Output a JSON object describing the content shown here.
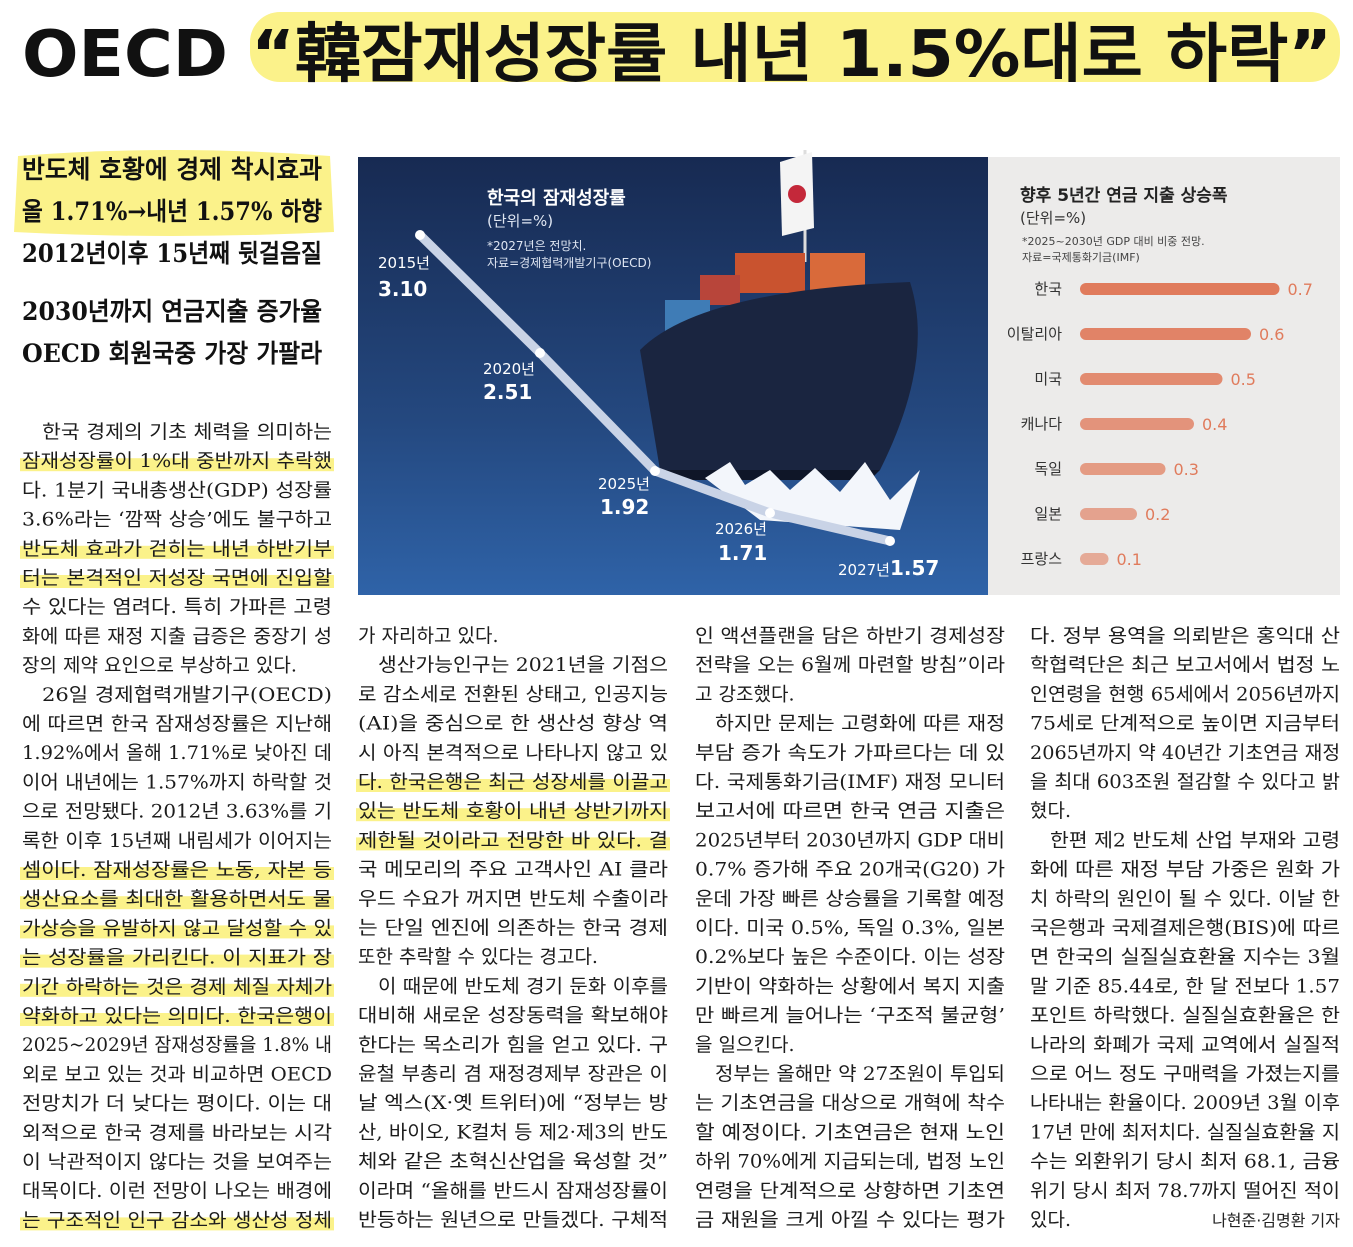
{
  "headline": "OECD “韓잠재성장률 내년 1.5%대로 하락”",
  "subheads": [
    "반도체 호황에 경제 착시효과",
    "올 1.71%→내년 1.57% 하향",
    "2012년이후 15년째 뒷걸음질",
    "2030년까지 연금지출 증가율",
    "OECD 회원국중 가장 가팔라"
  ],
  "chart_data": [
    {
      "type": "line",
      "title": "한국의 잠재성장률",
      "unit": "(단위=%)",
      "notes": [
        "*2027년은 전망치.",
        "자료=경제협력개발기구(OECD)"
      ],
      "categories": [
        "2015년",
        "2020년",
        "2025년",
        "2026년",
        "2027년"
      ],
      "values": [
        3.1,
        2.51,
        1.92,
        1.71,
        1.57
      ],
      "value_labels": [
        "3.10",
        "2.51",
        "1.92",
        "1.71",
        "1.57"
      ],
      "color": "#c9d3e6"
    },
    {
      "type": "bar",
      "title": "향후 5년간 연금 지출 상승폭",
      "unit": "(단위=%)",
      "notes": [
        "*2025~2030년 GDP 대비 비중 전망.",
        "자료=국제통화기금(IMF)"
      ],
      "categories": [
        "한국",
        "이탈리아",
        "미국",
        "캐나다",
        "독일",
        "일본",
        "프랑스"
      ],
      "values": [
        0.7,
        0.6,
        0.5,
        0.4,
        0.3,
        0.2,
        0.1
      ],
      "color": "#e07b5c"
    }
  ],
  "body": {
    "columns": [
      [
        "한국 경제의 기초 체력을 의미하는",
        "잠재성장률이 1%대 중반까지 추락했",
        "다. 1분기 국내총생산(GDP) 성장률",
        "3.6%라는 ‘깜짝 상승’에도 불구하고",
        "반도체 효과가 걷히는 내년 하반기부",
        "터는 본격적인 저성장 국면에 진입할",
        "수 있다는 염려다. 특히 가파른 고령",
        "화에 따른 재정 지출 급증은 중장기 성",
        "장의 제약 요인으로 부상하고 있다.",
        "26일 경제협력개발기구(OECD)",
        "에 따르면 한국 잠재성장률은 지난해",
        "1.92%에서 올해 1.71%로 낮아진 데",
        "이어 내년에는 1.57%까지 하락할 것",
        "으로 전망됐다. 2012년 3.63%를 기",
        "록한 이후 15년째 내림세가 이어지는",
        "셈이다. 잠재성장률은 노동, 자본 등",
        "생산요소를 최대한 활용하면서도 물",
        "가상승을 유발하지 않고 달성할 수 있",
        "는 성장률을 가리킨다. 이 지표가 장",
        "기간 하락하는 것은 경제 체질 자체가",
        "약화하고 있다는 의미다. 한국은행이",
        "2025~2029년 잠재성장률을 1.8% 내",
        "외로 보고 있는 것과 비교하면 OECD",
        "전망치가 더 낮다는 평이다. 이는 대",
        "외적으로 한국 경제를 바라보는 시각",
        "이 낙관적이지 않다는 것을 보여주는",
        "대목이다. 이런 전망이 나오는 배경에",
        "는 구조적인 인구 감소와 생산성 정체"
      ],
      [
        "가 자리하고 있다.",
        "생산가능인구는 2021년을 기점으",
        "로 감소세로 전환된 상태고, 인공지능",
        "(AI)을 중심으로 한 생산성 향상 역",
        "시 아직 본격적으로 나타나지 않고 있",
        "다. 한국은행은 최근 성장세를 이끌고",
        "있는 반도체 호황이 내년 상반기까지",
        "제한될 것이라고 전망한 바 있다. 결",
        "국 메모리의 주요 고객사인 AI 클라",
        "우드 수요가 꺼지면 반도체 수출이라",
        "는 단일 엔진에 의존하는 한국 경제",
        "또한 추락할 수 있다는 경고다.",
        "이 때문에 반도체 경기 둔화 이후를",
        "대비해 새로운 성장동력을 확보해야",
        "한다는 목소리가 힘을 얻고 있다. 구",
        "윤철 부총리 겸 재정경제부 장관은 이",
        "날 엑스(X·옛 트위터)에 “정부는 방",
        "산, 바이오, K컬처 등 제2·제3의 반도",
        "체와 같은 초혁신산업을 육성할 것”",
        "이라며 “올해를 반드시 잠재성장률이",
        "반등하는 원년으로 만들겠다. 구체적"
      ],
      [
        "인 액션플랜을 담은 하반기 경제성장",
        "전략을 오는 6월께 마련할 방침”이라",
        "고 강조했다.",
        "하지만 문제는 고령화에 따른 재정",
        "부담 증가 속도가 가파르다는 데 있",
        "다. 국제통화기금(IMF) 재정 모니터",
        "보고서에 따르면 한국 연금 지출은",
        "2025년부터 2030년까지 GDP 대비",
        "0.7% 증가해 주요 20개국(G20) 가",
        "운데 가장 빠른 상승률을 기록할 예정",
        "이다. 미국 0.5%, 독일 0.3%, 일본",
        "0.2%보다 높은 수준이다. 이는 성장",
        "기반이 약화하는 상황에서 복지 지출",
        "만 빠르게 늘어나는 ‘구조적 불균형’",
        "을 일으킨다.",
        "정부는 올해만 약 27조원이 투입되",
        "는 기초연금을 대상으로 개혁에 착수",
        "할 예정이다. 기초연금은 현재 노인",
        "하위 70%에게 지급되는데, 법정 노인",
        "연령을 단계적으로 상향하면 기초연",
        "금 재원을 크게 아낄 수 있다는 평가"
      ],
      [
        "다. 정부 용역을 의뢰받은 홍익대 산",
        "학협력단은 최근 보고서에서 법정 노",
        "인연령을 현행 65세에서 2056년까지",
        "75세로 단계적으로 높이면 지금부터",
        "2065년까지 약 40년간 기초연금 재정",
        "을 최대 603조원 절감할 수 있다고 밝",
        "혔다.",
        "한편 제2 반도체 산업 부재와 고령",
        "화에 따른 재정 부담 가중은 원화 가",
        "치 하락의 원인이 될 수 있다. 이날 한",
        "국은행과 국제결제은행(BIS)에 따르",
        "면 한국의 실질실효환율 지수는 3월",
        "말 기준 85.44로, 한 달 전보다 1.57",
        "포인트 하락했다. 실질실효환율은 한",
        "나라의 화폐가 국제 교역에서 실질적",
        "으로 어느 정도 구매력을 가졌는지를",
        "나타내는 환율이다. 2009년 3월 이후",
        "17년 만에 최저치다. 실질실효환율 지",
        "수는 외환위기 당시 최저 68.1, 금융",
        "위기 당시 최저 78.7까지 떨어진 적이",
        "있다."
      ]
    ]
  },
  "byline": "나현준·김명환 기자"
}
